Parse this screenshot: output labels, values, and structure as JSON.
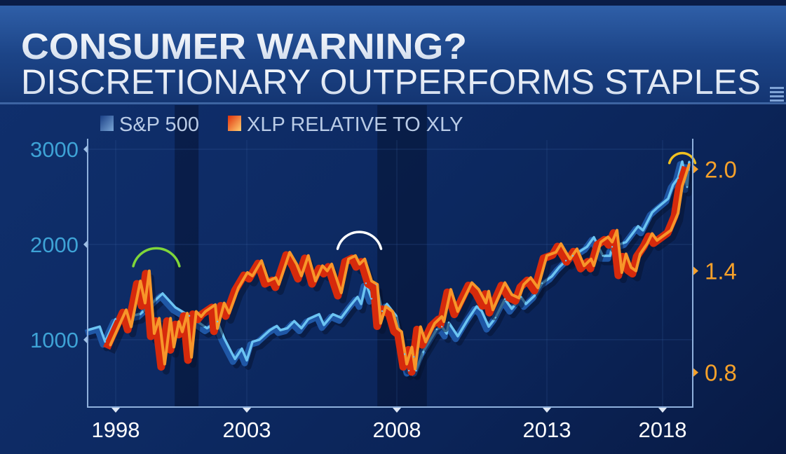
{
  "header": {
    "title_line1": "CONSUMER WARNING?",
    "title_line2": "DISCRETIONARY OUTPERFORMS STAPLES"
  },
  "colors": {
    "sp500": "#6cc4f2",
    "sp500_shadow": "#1f57a6",
    "ratio": "#f7962a",
    "ratio_ribbon": "#d62a0c",
    "left_axis": "#3ea3d6",
    "right_axis": "#f6a12a",
    "arc_1999": "#7fd63a",
    "arc_2007": "#ffffff",
    "arc_2018": "#f0c020"
  },
  "chart_data": {
    "type": "line",
    "title": "CONSUMER WARNING? DISCRETIONARY OUTPERFORMS STAPLES",
    "legend": [
      "S&P 500",
      "XLP RELATIVE TO XLY"
    ],
    "legend_placement": "top-left",
    "x_ticks": [
      "1998",
      "2003",
      "2008",
      "2013",
      "2018"
    ],
    "x_tick_values": [
      1998,
      2003,
      2008,
      2013,
      2018
    ],
    "xlim": [
      1996.93,
      2019.2
    ],
    "left_axis": {
      "ticks": [
        "3000",
        "2000",
        "1000"
      ],
      "tick_values": [
        3000,
        2000,
        1000
      ],
      "ylim": [
        300,
        3110
      ]
    },
    "right_axis": {
      "ticks": [
        "2.0",
        "1.4",
        "0.8"
      ],
      "tick_values": [
        2.0,
        1.4,
        0.8
      ],
      "ylim": [
        0.6,
        2.18
      ]
    },
    "recessions": [
      [
        2000.25,
        2001.16
      ],
      [
        2007.35,
        2009.0
      ]
    ],
    "highlights": [
      {
        "name": "arc-1999",
        "x": 1999.55,
        "axis": "right",
        "y": 1.47
      },
      {
        "name": "arc-2007",
        "x": 2006.75,
        "axis": "right",
        "y": 1.57
      },
      {
        "name": "arc-2018",
        "x": 2018.85,
        "axis": "right",
        "y": 2.06
      }
    ],
    "series": [
      {
        "name": "S&P 500",
        "axis": "left",
        "points": [
          [
            1996.93,
            1100
          ],
          [
            1997.39,
            1137
          ],
          [
            1997.6,
            978
          ],
          [
            1998.0,
            1216
          ],
          [
            1998.94,
            1270
          ],
          [
            1999.79,
            1485
          ],
          [
            2000.27,
            1340
          ],
          [
            2000.81,
            1250
          ],
          [
            2001.48,
            1120
          ],
          [
            2001.88,
            1190
          ],
          [
            2002.14,
            1015
          ],
          [
            2002.41,
            870
          ],
          [
            2002.55,
            798
          ],
          [
            2002.81,
            906
          ],
          [
            2003.0,
            783
          ],
          [
            2003.19,
            978
          ],
          [
            2003.42,
            1000
          ],
          [
            2003.77,
            1100
          ],
          [
            2004.0,
            1144
          ],
          [
            2004.12,
            1100
          ],
          [
            2004.35,
            1120
          ],
          [
            2004.58,
            1195
          ],
          [
            2004.82,
            1120
          ],
          [
            2005.05,
            1216
          ],
          [
            2005.41,
            1267
          ],
          [
            2005.57,
            1155
          ],
          [
            2005.87,
            1267
          ],
          [
            2006.15,
            1230
          ],
          [
            2006.46,
            1361
          ],
          [
            2006.69,
            1448
          ],
          [
            2006.81,
            1375
          ],
          [
            2006.97,
            1592
          ],
          [
            2007.16,
            1430
          ],
          [
            2007.32,
            1578
          ],
          [
            2007.51,
            1300
          ],
          [
            2007.67,
            1375
          ],
          [
            2007.98,
            1250
          ],
          [
            2008.26,
            848
          ],
          [
            2008.4,
            675
          ],
          [
            2008.57,
            820
          ],
          [
            2008.64,
            675
          ],
          [
            2008.87,
            870
          ],
          [
            2009.33,
            1108
          ],
          [
            2009.5,
            1137
          ],
          [
            2009.66,
            1065
          ],
          [
            2009.73,
            1180
          ],
          [
            2010.03,
            1036
          ],
          [
            2010.36,
            1210
          ],
          [
            2010.66,
            1350
          ],
          [
            2010.83,
            1300
          ],
          [
            2011.06,
            1137
          ],
          [
            2011.29,
            1231
          ],
          [
            2011.6,
            1426
          ],
          [
            2011.83,
            1325
          ],
          [
            2012.14,
            1448
          ],
          [
            2012.3,
            1375
          ],
          [
            2012.6,
            1466
          ],
          [
            2012.84,
            1592
          ],
          [
            2013.21,
            1664
          ],
          [
            2013.52,
            1758
          ],
          [
            2013.82,
            1830
          ],
          [
            2014.12,
            1881
          ],
          [
            2014.73,
            1975
          ],
          [
            2015.03,
            2076
          ],
          [
            2015.42,
            1881
          ],
          [
            2015.73,
            1881
          ],
          [
            2015.82,
            1975
          ],
          [
            2016.42,
            2025
          ],
          [
            2016.94,
            2191
          ],
          [
            2017.15,
            2148
          ],
          [
            2017.55,
            2336
          ],
          [
            2017.76,
            2383
          ],
          [
            2018.24,
            2480
          ],
          [
            2018.45,
            2625
          ],
          [
            2018.67,
            2697
          ],
          [
            2018.85,
            2870
          ],
          [
            2019.06,
            2603
          ],
          [
            2019.15,
            2870
          ]
        ]
      },
      {
        "name": "XLP RELATIVE TO XLY",
        "axis": "right",
        "points": [
          [
            1997.79,
            0.96
          ],
          [
            1998.4,
            1.17
          ],
          [
            1998.59,
            1.07
          ],
          [
            1998.94,
            1.34
          ],
          [
            1999.12,
            1.21
          ],
          [
            1999.28,
            1.4
          ],
          [
            1999.47,
            1.03
          ],
          [
            1999.66,
            1.12
          ],
          [
            1999.87,
            0.85
          ],
          [
            2000.09,
            1.12
          ],
          [
            2000.22,
            0.95
          ],
          [
            2000.41,
            1.1
          ],
          [
            2000.54,
            1.04
          ],
          [
            2000.73,
            1.15
          ],
          [
            2000.89,
            0.89
          ],
          [
            2001.07,
            1.16
          ],
          [
            2001.26,
            1.13
          ],
          [
            2001.42,
            1.16
          ],
          [
            2001.8,
            1.2
          ],
          [
            2001.88,
            1.06
          ],
          [
            2002.14,
            1.21
          ],
          [
            2002.33,
            1.15
          ],
          [
            2002.68,
            1.3
          ],
          [
            2003.02,
            1.39
          ],
          [
            2003.19,
            1.37
          ],
          [
            2003.49,
            1.46
          ],
          [
            2003.72,
            1.34
          ],
          [
            2003.96,
            1.36
          ],
          [
            2004.07,
            1.32
          ],
          [
            2004.43,
            1.51
          ],
          [
            2004.66,
            1.44
          ],
          [
            2004.82,
            1.37
          ],
          [
            2005.05,
            1.49
          ],
          [
            2005.29,
            1.34
          ],
          [
            2005.52,
            1.43
          ],
          [
            2005.68,
            1.4
          ],
          [
            2005.83,
            1.44
          ],
          [
            2006.15,
            1.27
          ],
          [
            2006.39,
            1.47
          ],
          [
            2006.62,
            1.49
          ],
          [
            2006.76,
            1.44
          ],
          [
            2006.93,
            1.47
          ],
          [
            2007.16,
            1.34
          ],
          [
            2007.35,
            1.32
          ],
          [
            2007.46,
            1.09
          ],
          [
            2007.63,
            1.19
          ],
          [
            2007.86,
            1.16
          ],
          [
            2008.02,
            1.06
          ],
          [
            2008.16,
            1.04
          ],
          [
            2008.33,
            0.85
          ],
          [
            2008.5,
            0.95
          ],
          [
            2008.61,
            0.82
          ],
          [
            2008.79,
            1.07
          ],
          [
            2008.96,
            0.98
          ],
          [
            2009.26,
            1.09
          ],
          [
            2009.5,
            1.13
          ],
          [
            2009.57,
            1.1
          ],
          [
            2009.8,
            1.29
          ],
          [
            2010.03,
            1.16
          ],
          [
            2010.5,
            1.33
          ],
          [
            2010.73,
            1.29
          ],
          [
            2010.97,
            1.21
          ],
          [
            2011.06,
            1.28
          ],
          [
            2011.2,
            1.17
          ],
          [
            2011.6,
            1.33
          ],
          [
            2011.83,
            1.26
          ],
          [
            2012.07,
            1.24
          ],
          [
            2012.23,
            1.32
          ],
          [
            2012.46,
            1.36
          ],
          [
            2012.7,
            1.3
          ],
          [
            2013.0,
            1.49
          ],
          [
            2013.39,
            1.51
          ],
          [
            2013.61,
            1.56
          ],
          [
            2013.82,
            1.51
          ],
          [
            2014.0,
            1.47
          ],
          [
            2014.3,
            1.53
          ],
          [
            2014.61,
            1.43
          ],
          [
            2014.91,
            1.47
          ],
          [
            2015.03,
            1.43
          ],
          [
            2015.33,
            1.57
          ],
          [
            2015.64,
            1.6
          ],
          [
            2015.82,
            1.57
          ],
          [
            2016.03,
            1.64
          ],
          [
            2016.24,
            1.39
          ],
          [
            2016.42,
            1.5
          ],
          [
            2016.64,
            1.42
          ],
          [
            2016.85,
            1.4
          ],
          [
            2017.03,
            1.5
          ],
          [
            2017.33,
            1.56
          ],
          [
            2017.55,
            1.62
          ],
          [
            2017.76,
            1.58
          ],
          [
            2018.36,
            1.64
          ],
          [
            2018.67,
            1.74
          ],
          [
            2018.85,
            1.9
          ],
          [
            2019.15,
            2.03
          ]
        ]
      }
    ]
  }
}
